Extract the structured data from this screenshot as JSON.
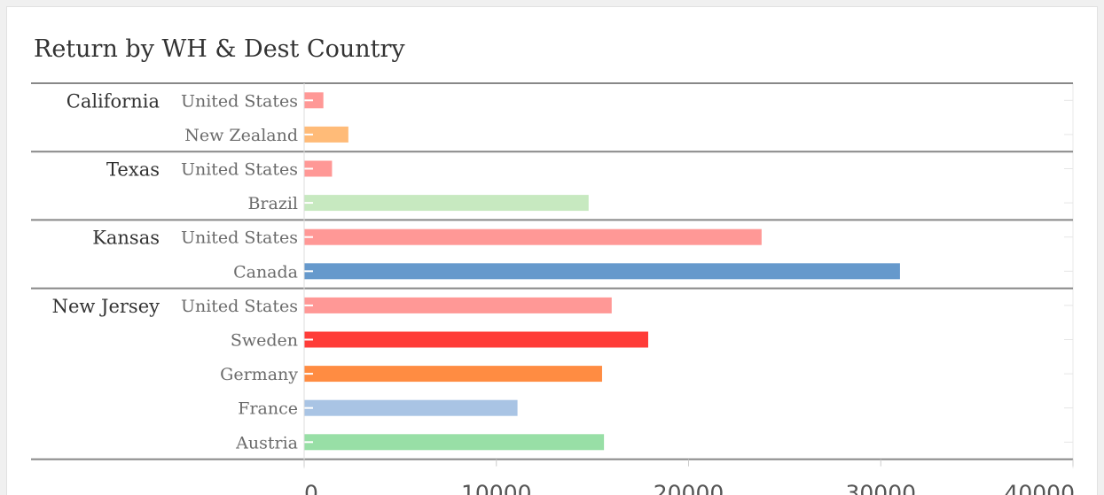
{
  "chart_data": {
    "type": "bar",
    "orientation": "horizontal",
    "title": "Return by WH & Dest Country",
    "xlim": [
      0,
      40000
    ],
    "x_ticks": [
      "0",
      "10000",
      "20000",
      "30000",
      "40000"
    ],
    "groups": [
      {
        "label": "California",
        "rows": [
          {
            "country": "United States",
            "value": 1000,
            "color": "#ff9896"
          },
          {
            "country": "New Zealand",
            "value": 2300,
            "color": "#ffbb78"
          }
        ]
      },
      {
        "label": "Texas",
        "rows": [
          {
            "country": "United States",
            "value": 1450,
            "color": "#ff9896"
          },
          {
            "country": "Brazil",
            "value": 14800,
            "color": "#c7e9c0"
          }
        ]
      },
      {
        "label": "Kansas",
        "rows": [
          {
            "country": "United States",
            "value": 23800,
            "color": "#ff9896"
          },
          {
            "country": "Canada",
            "value": 31000,
            "color": "#6699cc"
          }
        ]
      },
      {
        "label": "New Jersey",
        "rows": [
          {
            "country": "United States",
            "value": 16000,
            "color": "#ff9896"
          },
          {
            "country": "Sweden",
            "value": 17900,
            "color": "#ff3c38"
          },
          {
            "country": "Germany",
            "value": 15500,
            "color": "#ff8c42"
          },
          {
            "country": "France",
            "value": 11100,
            "color": "#a9c4e4"
          },
          {
            "country": "Austria",
            "value": 15600,
            "color": "#98dfa6"
          }
        ]
      }
    ],
    "grid": true,
    "legend": "none"
  }
}
